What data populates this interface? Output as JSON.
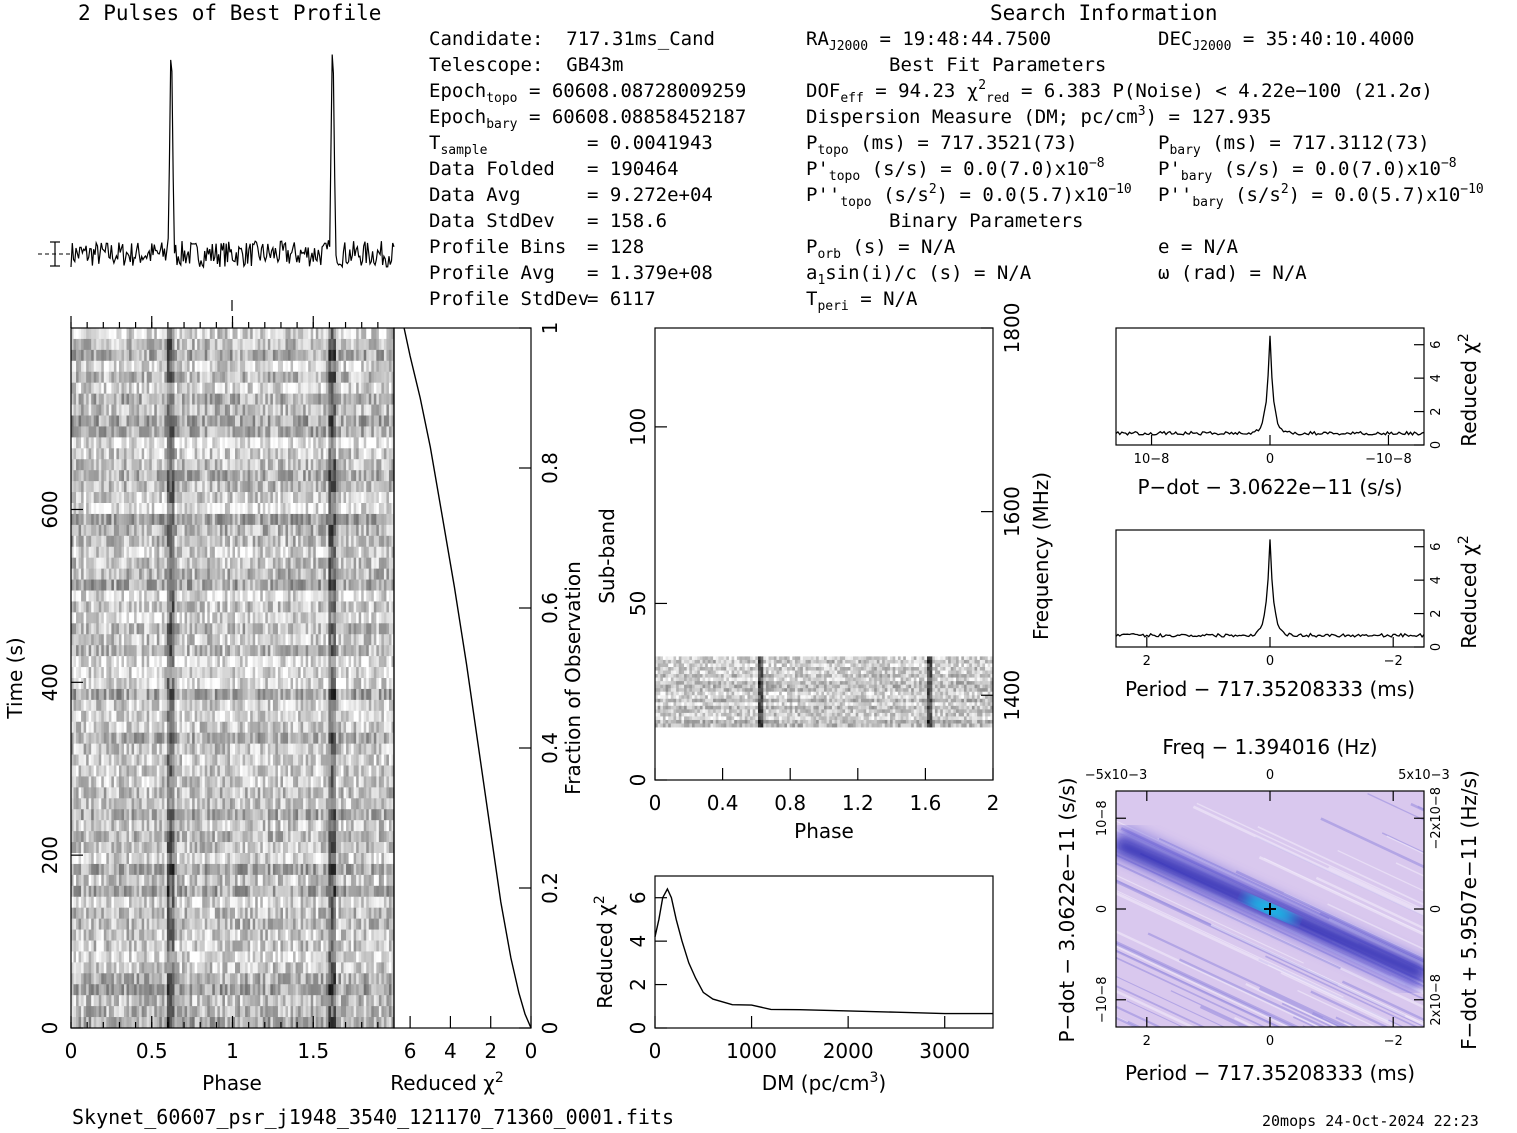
{
  "profile": {
    "title": "2 Pulses of Best Profile"
  },
  "search": {
    "title": "Search Information"
  },
  "candidate_info": [
    {
      "label": "Candidate:",
      "value": "717.31ms_Cand"
    },
    {
      "label": "Telescope:",
      "value": "GB43m"
    },
    {
      "label": "Epoch",
      "sub": "topo",
      "value": "= 60608.08728009259"
    },
    {
      "label": "Epoch",
      "sub": "bary",
      "value": "= 60608.08858452187"
    },
    {
      "label": "T",
      "sub": "sample",
      "value": "=   0.0041943"
    },
    {
      "label": "Data Folded",
      "value": "=   190464"
    },
    {
      "label": "Data Avg",
      "value": "=   9.272e+04"
    },
    {
      "label": "Data StdDev",
      "value": "=   158.6"
    },
    {
      "label": "Profile Bins",
      "value": "=   128"
    },
    {
      "label": "Profile Avg",
      "value": "=   1.379e+08"
    },
    {
      "label": "Profile StdDev",
      "value": "=   6117"
    }
  ],
  "position": {
    "ra": {
      "label": "RA",
      "sub": "J2000",
      "value": " = 19:48:44.7500"
    },
    "dec": {
      "label": "DEC",
      "sub": "J2000",
      "value": " = 35:40:10.4000"
    }
  },
  "best_fit": {
    "heading": "Best Fit Parameters",
    "dof": {
      "a": "DOF",
      "sub": "eff",
      "b": " = 94.23  χ",
      "sup": "2",
      "sub2": "red",
      "c": " = 6.383  P(Noise) < 4.22e−100  (21.2σ)"
    },
    "dm": {
      "a": "Dispersion Measure (DM; pc/cm",
      "sup": "3",
      "b": ") = 127.935"
    },
    "ptopo": {
      "a": "P",
      "sub": "topo",
      "b": " (ms) =  717.3521(73)"
    },
    "pbary": {
      "a": "P",
      "sub": "bary",
      "b": " (ms) =  717.3112(73)"
    },
    "pdtopo": {
      "a": "P'",
      "sub": "topo",
      "b": " (s/s) = 0.0(7.0)x10",
      "sup": "−8"
    },
    "pdbary": {
      "a": "P'",
      "sub": "bary",
      "b": " (s/s) = 0.0(7.0)x10",
      "sup": "−8"
    },
    "pddtopo": {
      "a": "P''",
      "sub": "topo",
      "b": " (s/s",
      "sup1": "2",
      "c": ") = 0.0(5.7)x10",
      "sup": "−10"
    },
    "pddbary": {
      "a": "P''",
      "sub": "bary",
      "b": " (s/s",
      "sup1": "2",
      "c": ") = 0.0(5.7)x10",
      "sup": "−10"
    }
  },
  "binary": {
    "heading": "Binary Parameters",
    "porb": {
      "a": "P",
      "sub": "orb",
      "b": " (s) = N/A"
    },
    "e": "e = N/A",
    "a1": {
      "a": "a",
      "sub": "1",
      "b": "sin(i)/c (s) = N/A"
    },
    "omega": "ω (rad) = N/A",
    "tperi": {
      "a": "T",
      "sub": "peri",
      "b": " = N/A"
    }
  },
  "footer": {
    "filename": "Skynet_60607_psr_j1948_3540_121170_71360_0001.fits",
    "stamp": "20mops 24-Oct-2024 22:23"
  },
  "colors": {
    "line": "#000000",
    "map_bg": "#d9c8ee",
    "map_dark": "#1a1aa8",
    "map_peak": "#00ffff"
  },
  "chart_data": [
    {
      "type": "line",
      "name": "profile",
      "title": "2 Pulses of Best Profile",
      "xlim": [
        0,
        2
      ],
      "baseline": 1.0,
      "noise": 0.06,
      "peaks": [
        {
          "x": 0.62,
          "height": 8.0,
          "width": 0.012
        },
        {
          "x": 1.62,
          "height": 8.0,
          "width": 0.012
        }
      ]
    },
    {
      "type": "heatmap",
      "name": "time-phase",
      "xlabel": "Phase",
      "ylabel": "Time (s)",
      "xlim": [
        0,
        2
      ],
      "ylim": [
        0,
        810
      ],
      "xticks": [
        0,
        0.5,
        1,
        1.5
      ],
      "xticklabels": [
        "0",
        "0.5",
        "1",
        "1.5"
      ],
      "yticks": [
        0,
        200,
        400,
        600
      ],
      "yticklabels": [
        "0",
        "200",
        "400",
        "600"
      ],
      "pulse_phases": [
        0.62,
        1.62
      ],
      "rows": 64,
      "cols": 128
    },
    {
      "type": "line",
      "name": "reduced-chi2-vs-fraction",
      "xlabel": "Reduced χ2",
      "ylabel": "Fraction of Observation",
      "xlim": [
        6.8,
        0
      ],
      "ylim": [
        0,
        1
      ],
      "xticks": [
        6,
        4,
        2,
        0
      ],
      "xticklabels": [
        "6",
        "4",
        "2",
        "0"
      ],
      "yticks": [
        0,
        0.2,
        0.4,
        0.6,
        0.8,
        1
      ],
      "yticklabels": [
        "0",
        "0.2",
        "0.4",
        "0.6",
        "0.8",
        "1"
      ],
      "x": [
        0,
        0.3,
        0.6,
        1.0,
        1.5,
        2.0,
        2.6,
        3.2,
        3.8,
        4.4,
        5.0,
        5.5,
        6.0,
        6.3
      ],
      "y": [
        0,
        0.02,
        0.05,
        0.1,
        0.18,
        0.28,
        0.4,
        0.52,
        0.63,
        0.73,
        0.83,
        0.9,
        0.96,
        1.0
      ]
    },
    {
      "type": "heatmap",
      "name": "subband-phase",
      "xlabel": "Phase",
      "ylabel": "Sub-band",
      "y2label": "Frequency (MHz)",
      "xlim": [
        0,
        2
      ],
      "ylim": [
        0,
        128
      ],
      "xticks": [
        0,
        0.4,
        0.8,
        1.2,
        1.6,
        2
      ],
      "xticklabels": [
        "0",
        "0.4",
        "0.8",
        "1.2",
        "1.6",
        "2"
      ],
      "yticks": [
        0,
        50,
        100
      ],
      "yticklabels": [
        "0",
        "50",
        "100"
      ],
      "y2ticks": [
        1400,
        1600,
        1800
      ],
      "y2ticklabels": [
        "1400",
        "1600",
        "1800"
      ],
      "band": [
        15,
        35
      ],
      "pulse_phases": [
        0.62,
        1.62
      ]
    },
    {
      "type": "line",
      "name": "dm-curve",
      "xlabel": "DM (pc/cm3)",
      "ylabel": "Reduced χ2",
      "xlim": [
        0,
        3500
      ],
      "ylim": [
        0,
        7
      ],
      "xticks": [
        0,
        1000,
        2000,
        3000
      ],
      "xticklabels": [
        "0",
        "1000",
        "2000",
        "3000"
      ],
      "yticks": [
        0,
        2,
        4,
        6
      ],
      "yticklabels": [
        "0",
        "2",
        "4",
        "6"
      ],
      "x": [
        0,
        40,
        80,
        128,
        170,
        220,
        280,
        350,
        420,
        500,
        600,
        800,
        1000,
        1200,
        1500,
        2000,
        2500,
        3000,
        3500
      ],
      "y": [
        4.2,
        5.0,
        6.0,
        6.4,
        6.0,
        5.0,
        4.0,
        3.0,
        2.3,
        1.7,
        1.3,
        1.1,
        1.05,
        0.9,
        0.9,
        0.8,
        0.75,
        0.7,
        0.7
      ]
    },
    {
      "type": "line",
      "name": "pdot-curve",
      "xlabel": "P−dot − 3.0622e−11 (s/s)",
      "ylabel": "Reduced χ2",
      "xlim": [
        1.3,
        -1.3
      ],
      "ylim": [
        0,
        7
      ],
      "xticks": [
        1,
        0,
        -1
      ],
      "xticklabels": [
        "10−8",
        "0",
        "−10−8"
      ],
      "yticks": [
        0,
        2,
        4,
        6
      ],
      "yticklabels": [
        "0",
        "2",
        "4",
        "6"
      ],
      "center": 0,
      "peak": 6.5,
      "floor": 0.7,
      "width": 0.03
    },
    {
      "type": "line",
      "name": "period-curve",
      "xlabel": "Period − 717.35208333 (ms)",
      "ylabel": "Reduced χ2",
      "xlim": [
        2.5,
        -2.5
      ],
      "ylim": [
        0,
        7
      ],
      "xticks": [
        2,
        0,
        -2
      ],
      "xticklabels": [
        "2",
        "0",
        "−2"
      ],
      "yticks": [
        0,
        2,
        4,
        6
      ],
      "yticklabels": [
        "0",
        "2",
        "4",
        "6"
      ],
      "center": 0,
      "peak": 6.5,
      "floor": 0.7,
      "width": 0.06
    },
    {
      "type": "heatmap",
      "name": "period-pdot-plane",
      "title": "Freq − 1.394016 (Hz)",
      "xlabel": "Period − 717.35208333 (ms)",
      "ylabel": "P−dot − 3.0622e−11 (s/s)",
      "y2label": "F−dot + 5.9507e−11 (Hz/s)",
      "xlim": [
        2.5,
        -2.5
      ],
      "ylim": [
        1.3,
        -1.3
      ],
      "xticks": [
        2,
        0,
        -2
      ],
      "xticklabels": [
        "2",
        "0",
        "−2"
      ],
      "x2ticklabels": [
        "−5x10−3",
        "0",
        "5x10−3"
      ],
      "yticklabels": [
        "−10−8",
        "0",
        "10−8"
      ],
      "y2ticklabels": [
        "2x10−8",
        "0",
        "−2x10−8"
      ]
    }
  ]
}
